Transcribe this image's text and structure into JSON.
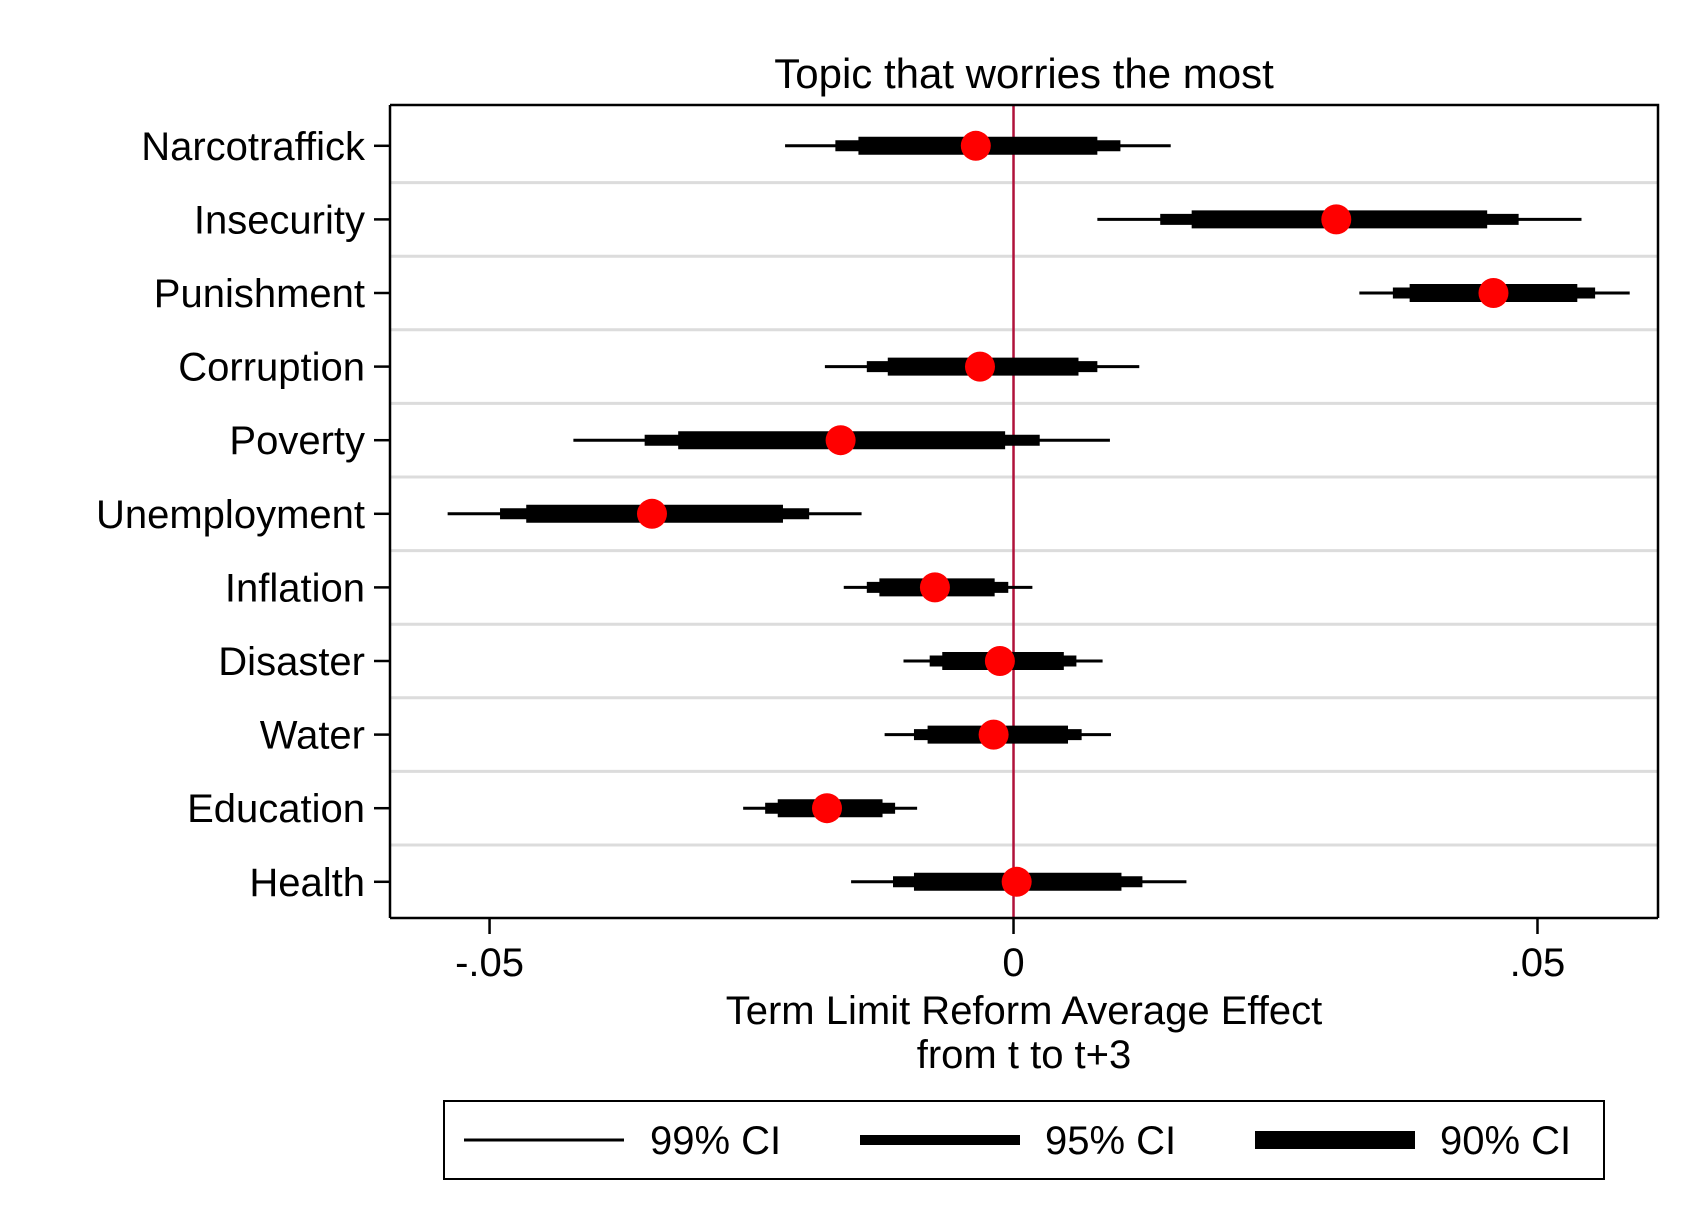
{
  "chart_data": {
    "type": "coefficient_plot",
    "title": "Topic that worries the most",
    "xlabel": [
      "Term Limit Reform Average Effect",
      "from t to t+3"
    ],
    "ylabel": "",
    "xlim": [
      -0.0595,
      0.0615
    ],
    "xticks": [
      {
        "value": -0.05,
        "label": "-.05"
      },
      {
        "value": 0,
        "label": "0"
      },
      {
        "value": 0.05,
        "label": ".05"
      }
    ],
    "reference_line": {
      "x": 0,
      "color": "#b0123a"
    },
    "marker_color": "#ff0000",
    "grid": true,
    "legend_position": "bottom",
    "legend": [
      "99% CI",
      "95% CI",
      "90% CI"
    ],
    "categories": [
      "Narcotraffick",
      "Insecurity",
      "Punishment",
      "Corruption",
      "Poverty",
      "Unemployment",
      "Inflation",
      "Disaster",
      "Water",
      "Education",
      "Health"
    ],
    "estimates": [
      -0.0036,
      0.0308,
      0.0458,
      -0.0032,
      -0.0165,
      -0.0345,
      -0.0075,
      -0.0013,
      -0.0019,
      -0.0178,
      0.0003
    ],
    "ci99": [
      [
        -0.0218,
        0.015
      ],
      [
        0.008,
        0.0542
      ],
      [
        0.033,
        0.0588
      ],
      [
        -0.018,
        0.012
      ],
      [
        -0.042,
        0.0092
      ],
      [
        -0.054,
        -0.0145
      ],
      [
        -0.0162,
        0.0018
      ],
      [
        -0.0105,
        0.0085
      ],
      [
        -0.0123,
        0.0093
      ],
      [
        -0.0258,
        -0.0092
      ],
      [
        -0.0155,
        0.0165
      ]
    ],
    "ci95": [
      [
        -0.017,
        0.0102
      ],
      [
        0.014,
        0.0482
      ],
      [
        0.0362,
        0.0555
      ],
      [
        -0.014,
        0.008
      ],
      [
        -0.0352,
        0.0025
      ],
      [
        -0.049,
        -0.0195
      ],
      [
        -0.014,
        -0.0005
      ],
      [
        -0.008,
        0.006
      ],
      [
        -0.0095,
        0.0065
      ],
      [
        -0.0237,
        -0.0113
      ],
      [
        -0.0115,
        0.0123
      ]
    ],
    "ci90": [
      [
        -0.0148,
        0.008
      ],
      [
        0.017,
        0.0452
      ],
      [
        0.0378,
        0.0538
      ],
      [
        -0.012,
        0.0062
      ],
      [
        -0.032,
        -0.0008
      ],
      [
        -0.0465,
        -0.022
      ],
      [
        -0.0128,
        -0.0018
      ],
      [
        -0.0068,
        0.0048
      ],
      [
        -0.0082,
        0.0052
      ],
      [
        -0.0225,
        -0.0125
      ],
      [
        -0.0095,
        0.0103
      ]
    ]
  }
}
